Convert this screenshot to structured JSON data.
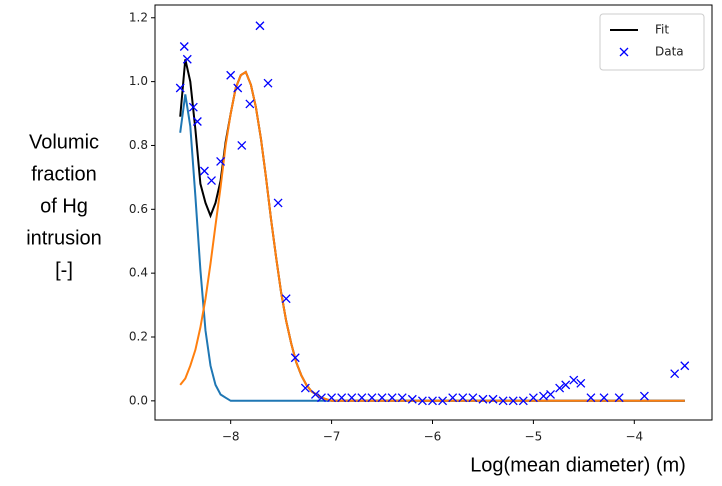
{
  "chart_data": {
    "type": "line",
    "ylabel": [
      "Volumic",
      "fraction",
      "of Hg",
      "intrusion",
      "[-]"
    ],
    "xlabel": "Log(mean diameter) (m)",
    "xlim": [
      -8.75,
      -3.23
    ],
    "ylim": [
      -0.06,
      1.24
    ],
    "xticks": [
      {
        "value": -8,
        "label": "−8"
      },
      {
        "value": -7,
        "label": "−7"
      },
      {
        "value": -6,
        "label": "−6"
      },
      {
        "value": -5,
        "label": "−5"
      },
      {
        "value": -4,
        "label": "−4"
      }
    ],
    "yticks": [
      {
        "value": 0,
        "label": "0.0"
      },
      0.2,
      0.4,
      0.6,
      0.8,
      {
        "value": 1,
        "label": "1.0"
      },
      1.2
    ],
    "legend": "upper right",
    "x": [
      -8.5,
      -8.45,
      -8.4,
      -8.35,
      -8.3,
      -8.25,
      -8.2,
      -8.15,
      -8.1,
      -8.05,
      -8.0,
      -7.95,
      -7.9,
      -7.85,
      -7.8,
      -7.75,
      -7.7,
      -7.65,
      -7.6,
      -7.55,
      -7.5,
      -7.45,
      -7.4,
      -7.35,
      -7.3,
      -7.25,
      -7.2,
      -7.15,
      -7.1,
      -7.05,
      -7.0,
      -6.5,
      -6.0,
      -5.5,
      -5.0,
      -4.5,
      -4.0,
      -3.5
    ],
    "series": [
      {
        "name": "Fit",
        "type": "line",
        "color": "#000000",
        "values": [
          0.89,
          1.07,
          1.0,
          0.85,
          0.68,
          0.62,
          0.58,
          0.62,
          0.69,
          0.81,
          0.9,
          0.98,
          1.02,
          1.03,
          0.99,
          0.92,
          0.82,
          0.7,
          0.57,
          0.45,
          0.34,
          0.25,
          0.18,
          0.12,
          0.08,
          0.05,
          0.03,
          0.02,
          0.01,
          0.005,
          0,
          0,
          0,
          0,
          0,
          0,
          0,
          0
        ]
      },
      {
        "type": "line",
        "color": "#1f77b4",
        "values": [
          0.84,
          0.96,
          0.86,
          0.64,
          0.41,
          0.22,
          0.11,
          0.05,
          0.02,
          0.01,
          0,
          0,
          0,
          0,
          0,
          0,
          0,
          0,
          0,
          0,
          0,
          0,
          0,
          0,
          0,
          0,
          0,
          0,
          0,
          0,
          0,
          0,
          0,
          0,
          0,
          0,
          0,
          0
        ]
      },
      {
        "type": "line",
        "color": "#ff7f0e",
        "values": [
          0.05,
          0.07,
          0.11,
          0.16,
          0.23,
          0.32,
          0.43,
          0.55,
          0.67,
          0.8,
          0.9,
          0.98,
          1.02,
          1.03,
          0.99,
          0.92,
          0.82,
          0.7,
          0.57,
          0.45,
          0.34,
          0.25,
          0.18,
          0.12,
          0.08,
          0.05,
          0.03,
          0.02,
          0.01,
          0.005,
          0,
          0,
          0,
          0,
          0,
          0,
          0,
          0
        ]
      },
      {
        "name": "Data",
        "type": "scatter",
        "color": "#0000ff",
        "x": [
          -8.5,
          -8.46,
          -8.43,
          -8.37,
          -8.33,
          -8.26,
          -8.19,
          -8.1,
          -8.0,
          -7.93,
          -7.89,
          -7.81,
          -7.71,
          -7.63,
          -7.53,
          -7.45,
          -7.36,
          -7.26,
          -7.16,
          -7.1,
          -7.0,
          -6.9,
          -6.8,
          -6.7,
          -6.6,
          -6.5,
          -6.4,
          -6.3,
          -6.2,
          -6.1,
          -6.0,
          -5.9,
          -5.8,
          -5.7,
          -5.6,
          -5.5,
          -5.4,
          -5.3,
          -5.2,
          -5.1,
          -5.0,
          -4.9,
          -4.83,
          -4.74,
          -4.68,
          -4.6,
          -4.53,
          -4.43,
          -4.3,
          -4.15,
          -3.9,
          -3.6,
          -3.5
        ],
        "values": [
          0.98,
          1.11,
          1.07,
          0.92,
          0.875,
          0.72,
          0.69,
          0.75,
          1.02,
          0.98,
          0.8,
          0.93,
          1.175,
          0.995,
          0.62,
          0.32,
          0.135,
          0.04,
          0.02,
          0.01,
          0.01,
          0.01,
          0.01,
          0.01,
          0.01,
          0.01,
          0.01,
          0.01,
          0.005,
          0,
          0,
          0,
          0.01,
          0.01,
          0.01,
          0.005,
          0.005,
          0,
          0,
          0,
          0.01,
          0.015,
          0.02,
          0.04,
          0.05,
          0.065,
          0.055,
          0.01,
          0.01,
          0.01,
          0.015,
          0.085,
          0.11
        ]
      }
    ]
  }
}
